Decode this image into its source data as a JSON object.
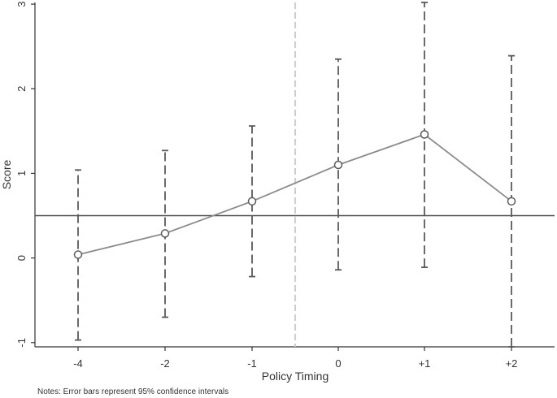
{
  "chart_data": {
    "type": "line",
    "title": "",
    "xlabel": "Policy Timing",
    "ylabel": "Score",
    "categories": [
      "-4",
      "-2",
      "-1",
      "0",
      "+1",
      "+2"
    ],
    "series": [
      {
        "values": [
          0.04,
          0.29,
          0.67,
          1.1,
          1.46,
          0.67
        ],
        "ci_lower": [
          -0.97,
          -0.7,
          -0.22,
          -0.14,
          -0.11,
          -1.05
        ],
        "ci_upper": [
          1.04,
          1.27,
          1.56,
          2.35,
          3.02,
          2.39
        ]
      }
    ],
    "ylim": [
      -1.05,
      3.02
    ],
    "yticks": [
      -1,
      0,
      1,
      2,
      3
    ],
    "reference_hline": 0.5,
    "reference_vline_between": [
      "-1",
      "0"
    ],
    "grid": false,
    "legend": "none",
    "note": "Notes: Error bars represent 95% confidence intervals",
    "colors": {
      "series": "#8c8c8c",
      "error_bars": "#5a5a5a",
      "hline": "#4d4d4d",
      "vline": "#c8c8c8",
      "axis": "#333333"
    }
  }
}
